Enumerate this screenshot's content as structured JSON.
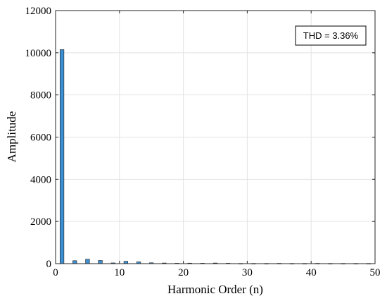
{
  "chart_data": {
    "type": "bar",
    "xlabel": "Harmonic Order (n)",
    "ylabel": "Amplitude",
    "xlim": [
      0,
      50
    ],
    "ylim": [
      0,
      12000
    ],
    "xticks": [
      0,
      10,
      20,
      30,
      40,
      50
    ],
    "yticks": [
      0,
      2000,
      4000,
      6000,
      8000,
      10000,
      12000
    ],
    "grid": true,
    "annotation": "THD = 3.36%",
    "bar_color": "#3d8fd1",
    "series": [
      {
        "x": [
          1,
          3,
          5,
          7,
          9,
          11,
          13,
          15,
          17,
          19,
          21,
          23,
          25,
          27,
          29,
          31,
          33,
          35,
          37,
          39,
          41,
          43,
          45,
          47,
          49
        ],
        "values": [
          10150,
          140,
          210,
          150,
          35,
          110,
          85,
          40,
          30,
          20,
          25,
          20,
          30,
          20,
          10,
          10,
          10,
          15,
          10,
          10,
          15,
          10,
          10,
          10,
          10
        ]
      }
    ]
  }
}
